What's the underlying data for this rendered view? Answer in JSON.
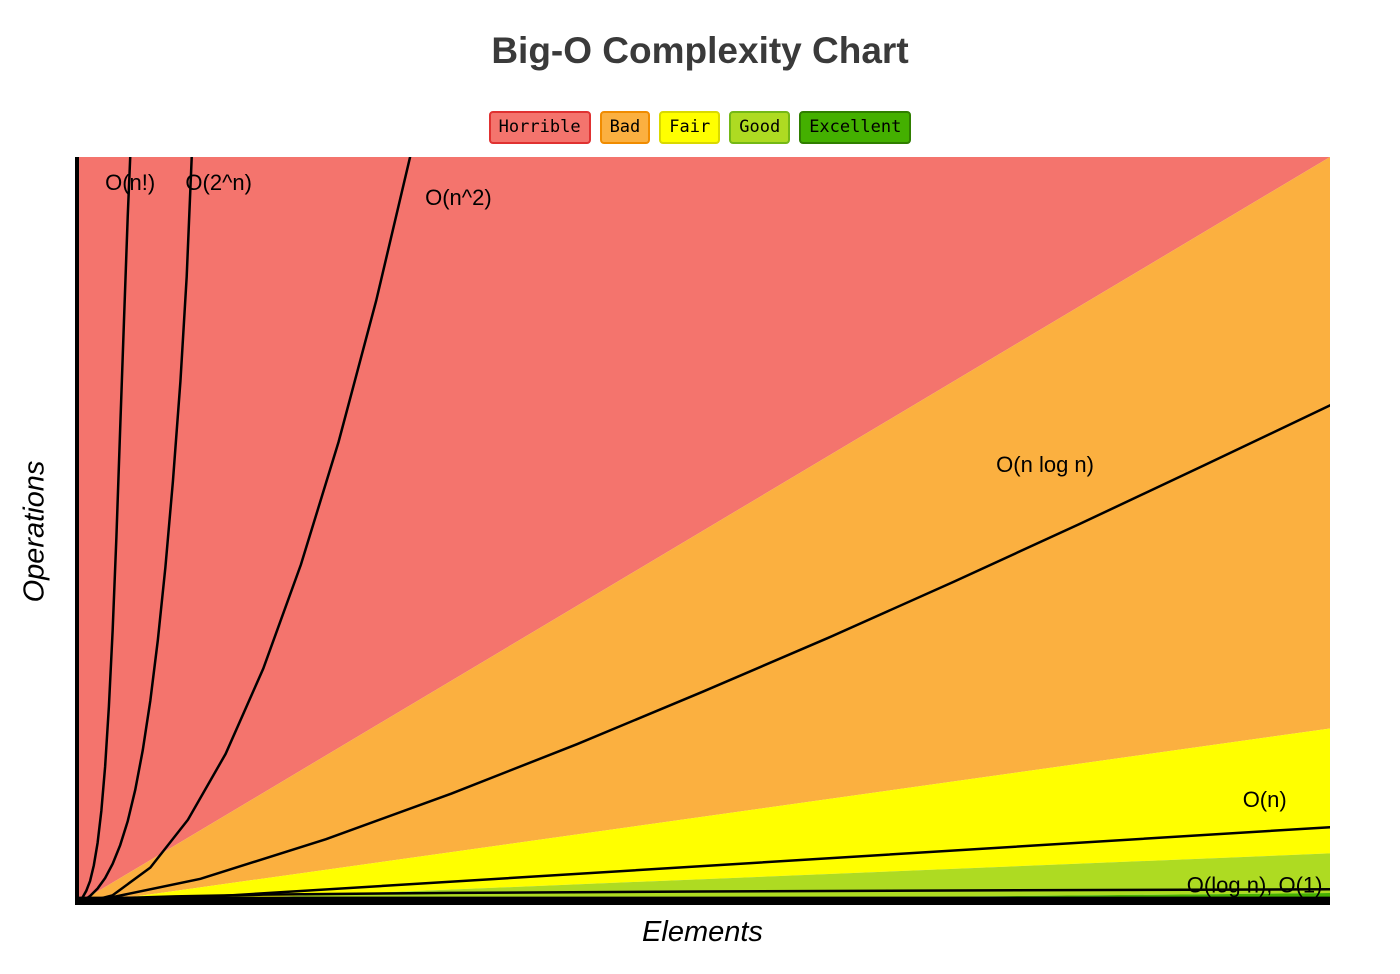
{
  "chart_data": {
    "type": "line",
    "title": "Big-O Complexity Chart",
    "xlabel": "Elements",
    "ylabel": "Operations",
    "axis_ticks": "none",
    "x_range_fraction": [
      0,
      1
    ],
    "y_range_fraction": [
      0,
      1
    ],
    "style": {
      "curve_color": "#000000",
      "curve_width": 2.5,
      "axis_color": "#000000",
      "title_color": "#3a3a3a",
      "background": "#ffffff"
    },
    "legend": [
      {
        "id": "horrible",
        "label": "Horrible",
        "fill": "#f4746d",
        "border": "#e03131"
      },
      {
        "id": "bad",
        "label": "Bad",
        "fill": "#fbb040",
        "border": "#f08c00"
      },
      {
        "id": "fair",
        "label": "Fair",
        "fill": "#ffff00",
        "border": "#d9d900"
      },
      {
        "id": "good",
        "label": "Good",
        "fill": "#aedb22",
        "border": "#74b816"
      },
      {
        "id": "excellent",
        "label": "Excellent",
        "fill": "#44b000",
        "border": "#2f7e00"
      }
    ],
    "regions": [
      {
        "rating": "horrible",
        "fill": "#f4746d",
        "polygon": [
          [
            0,
            1
          ],
          [
            0,
            0
          ],
          [
            1,
            0
          ]
        ]
      },
      {
        "rating": "bad",
        "fill": "#fbb040",
        "polygon": [
          [
            0,
            1
          ],
          [
            1,
            0
          ],
          [
            1,
            0.764
          ]
        ]
      },
      {
        "rating": "fair",
        "fill": "#ffff00",
        "polygon": [
          [
            0,
            1
          ],
          [
            1,
            0.764
          ],
          [
            1,
            0.931
          ]
        ]
      },
      {
        "rating": "good",
        "fill": "#aedb22",
        "polygon": [
          [
            0,
            1
          ],
          [
            1,
            0.931
          ],
          [
            1,
            0.984
          ]
        ]
      },
      {
        "rating": "excellent",
        "fill": "#44b000",
        "polygon": [
          [
            0,
            1
          ],
          [
            1,
            0.984
          ],
          [
            1,
            1
          ]
        ]
      }
    ],
    "curves": [
      {
        "id": "factorial",
        "label": "O(n!)",
        "rating": "horrible",
        "points": [
          [
            0,
            1
          ],
          [
            0.003,
            0.996
          ],
          [
            0.006,
            0.99
          ],
          [
            0.009,
            0.981
          ],
          [
            0.012,
            0.968
          ],
          [
            0.015,
            0.947
          ],
          [
            0.018,
            0.917
          ],
          [
            0.021,
            0.874
          ],
          [
            0.024,
            0.815
          ],
          [
            0.027,
            0.735
          ],
          [
            0.03,
            0.633
          ],
          [
            0.033,
            0.508
          ],
          [
            0.036,
            0.363
          ],
          [
            0.039,
            0.22
          ],
          [
            0.042,
            0.08
          ],
          [
            0.044,
            0
          ]
        ]
      },
      {
        "id": "exponential",
        "label": "O(2^n)",
        "rating": "horrible",
        "points": [
          [
            0,
            1
          ],
          [
            0.006,
            0.995
          ],
          [
            0.012,
            0.988
          ],
          [
            0.018,
            0.978
          ],
          [
            0.024,
            0.964
          ],
          [
            0.03,
            0.945
          ],
          [
            0.036,
            0.92
          ],
          [
            0.042,
            0.888
          ],
          [
            0.048,
            0.846
          ],
          [
            0.054,
            0.793
          ],
          [
            0.06,
            0.727
          ],
          [
            0.066,
            0.646
          ],
          [
            0.072,
            0.549
          ],
          [
            0.078,
            0.434
          ],
          [
            0.084,
            0.3
          ],
          [
            0.089,
            0.16
          ],
          [
            0.093,
            0
          ]
        ]
      },
      {
        "id": "quadratic",
        "label": "O(n^2)",
        "rating": "horrible",
        "points": [
          [
            0,
            1
          ],
          [
            0.03,
            0.987
          ],
          [
            0.06,
            0.95
          ],
          [
            0.09,
            0.886
          ],
          [
            0.12,
            0.798
          ],
          [
            0.15,
            0.684
          ],
          [
            0.18,
            0.545
          ],
          [
            0.21,
            0.381
          ],
          [
            0.24,
            0.192
          ],
          [
            0.267,
            0
          ]
        ]
      },
      {
        "id": "linearithmic",
        "label": "O(n log n)",
        "rating": "bad",
        "points": [
          [
            0,
            1
          ],
          [
            0.1,
            0.965
          ],
          [
            0.2,
            0.912
          ],
          [
            0.3,
            0.851
          ],
          [
            0.4,
            0.785
          ],
          [
            0.5,
            0.715
          ],
          [
            0.6,
            0.643
          ],
          [
            0.7,
            0.568
          ],
          [
            0.8,
            0.491
          ],
          [
            0.9,
            0.412
          ],
          [
            1,
            0.332
          ]
        ]
      },
      {
        "id": "linear",
        "label": "O(n)",
        "rating": "fair",
        "points": [
          [
            0,
            1
          ],
          [
            1,
            0.896
          ]
        ]
      },
      {
        "id": "logarithmic",
        "label": "O(log n)",
        "rating": "good",
        "points": [
          [
            0,
            1
          ],
          [
            0.004,
            0.997
          ],
          [
            0.01,
            0.9945
          ],
          [
            0.02,
            0.9925
          ],
          [
            0.04,
            0.9905
          ],
          [
            0.08,
            0.9885
          ],
          [
            0.15,
            0.9862
          ],
          [
            0.3,
            0.9838
          ],
          [
            0.5,
            0.982
          ],
          [
            0.75,
            0.9802
          ],
          [
            1,
            0.979
          ]
        ]
      },
      {
        "id": "constant",
        "label": "O(1)",
        "rating": "excellent",
        "points": [
          [
            0,
            0.9905
          ],
          [
            1,
            0.9905
          ]
        ]
      }
    ],
    "curve_labels": [
      {
        "id": "factorial",
        "text": "O(n!)",
        "x": 0.024,
        "y": 0.044,
        "anchor": "start"
      },
      {
        "id": "exponential",
        "text": "O(2^n)",
        "x": 0.088,
        "y": 0.044,
        "anchor": "start"
      },
      {
        "id": "quadratic",
        "text": "O(n^2)",
        "x": 0.279,
        "y": 0.064,
        "anchor": "start"
      },
      {
        "id": "linearithmic",
        "text": "O(n log n)",
        "x": 0.773,
        "y": 0.421,
        "anchor": "middle"
      },
      {
        "id": "linear",
        "text": "O(n)",
        "x": 0.948,
        "y": 0.869,
        "anchor": "middle"
      },
      {
        "id": "log-const",
        "text": "O(log n), O(1)",
        "x": 0.994,
        "y": 0.983,
        "anchor": "end"
      }
    ]
  }
}
